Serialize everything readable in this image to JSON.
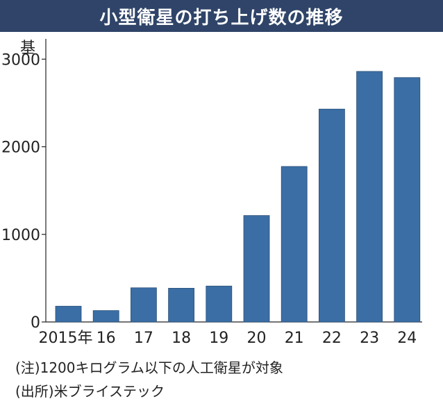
{
  "title": "小型衛星の打ち上げ数の推移",
  "notes": {
    "target": "(注)1200キログラム以下の人工衛星が対象",
    "source": "(出所)米ブライステック"
  },
  "chart_data": {
    "type": "bar",
    "title": "小型衛星の打ち上げ数の推移",
    "ylabel": "基",
    "xlabel": "",
    "categories": [
      "2015年",
      "16",
      "17",
      "18",
      "19",
      "20",
      "21",
      "22",
      "23",
      "24"
    ],
    "values": [
      180,
      130,
      390,
      385,
      410,
      1215,
      1775,
      2430,
      2860,
      2790
    ],
    "yticks": [
      0,
      1000,
      2000,
      3000
    ],
    "ylim": [
      0,
      3200
    ],
    "grid": false,
    "legend": "none",
    "bar_color": "#3a6ea5"
  }
}
